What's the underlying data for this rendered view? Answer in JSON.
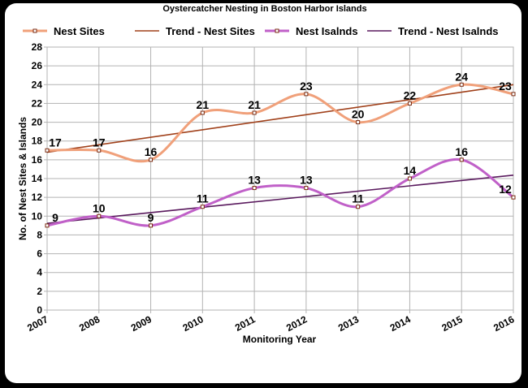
{
  "chart_data": {
    "type": "line",
    "title": "Oystercatcher Nesting in Boston Harbor Islands",
    "xlabel": "Monitoring Year",
    "ylabel": "No. of Nest Sites & Islands",
    "x": [
      "2007",
      "2008",
      "2009",
      "2010",
      "2011",
      "2012",
      "2013",
      "2014",
      "2015",
      "2016"
    ],
    "ylim": [
      0,
      28
    ],
    "yticks": [
      "0",
      "2",
      "4",
      "6",
      "8",
      "10",
      "12",
      "14",
      "16",
      "18",
      "20",
      "22",
      "24",
      "26",
      "28"
    ],
    "grid": true,
    "legend_position": "top",
    "series": [
      {
        "name": "Nest  Sites",
        "values": [
          17,
          17,
          16,
          21,
          21,
          23,
          20,
          22,
          24,
          23
        ],
        "color": "#f0a07a",
        "smooth": true,
        "markers": true
      },
      {
        "name": "Trend - Nest  Sites",
        "trend_of": 0,
        "color": "#a0401a"
      },
      {
        "name": "Nest Isalnds",
        "values": [
          9,
          10,
          9,
          11,
          13,
          13,
          11,
          14,
          16,
          12
        ],
        "color": "#c060c8",
        "smooth": true,
        "markers": true
      },
      {
        "name": "Trend - Nest Isalnds",
        "trend_of": 2,
        "color": "#5a1a5e"
      }
    ],
    "data_labels": [
      [
        "17",
        "17",
        "16",
        "21",
        "21",
        "23",
        "20",
        "22",
        "24",
        "23"
      ],
      [
        "9",
        "10",
        "9",
        "11",
        "13",
        "13",
        "11",
        "14",
        "16",
        "12"
      ]
    ]
  }
}
